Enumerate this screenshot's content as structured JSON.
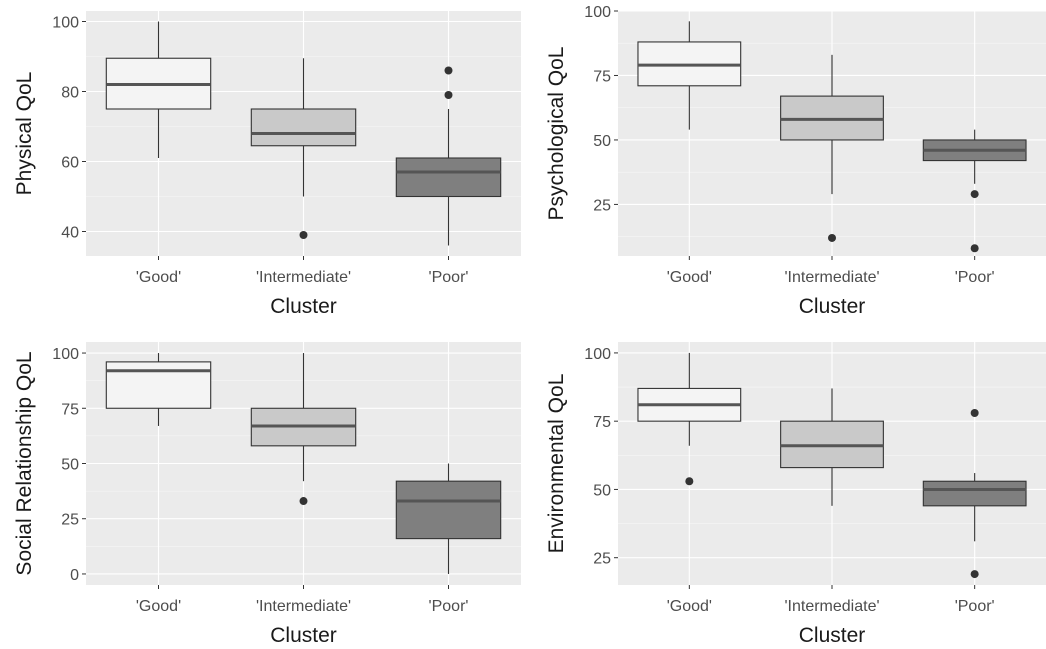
{
  "chart_data": [
    {
      "type": "box",
      "xlabel": "Cluster",
      "ylabel": "Physical QoL",
      "categories": [
        "'Good'",
        "'Intermediate'",
        "'Poor'"
      ],
      "ylim": [
        33,
        103
      ],
      "yticks": [
        40,
        60,
        80,
        100
      ],
      "grid": true,
      "boxes": [
        {
          "category": "'Good'",
          "whisker_low": 61,
          "q1": 75,
          "median": 82,
          "q3": 89.5,
          "whisker_high": 100,
          "outliers": [],
          "fill": "#f4f4f4"
        },
        {
          "category": "'Intermediate'",
          "whisker_low": 50,
          "q1": 64.5,
          "median": 68,
          "q3": 75,
          "whisker_high": 89.5,
          "outliers": [
            39
          ],
          "fill": "#c9c9c9"
        },
        {
          "category": "'Poor'",
          "whisker_low": 36,
          "q1": 50,
          "median": 57,
          "q3": 61,
          "whisker_high": 75,
          "outliers": [
            79,
            86
          ],
          "fill": "#7f7f7f"
        }
      ]
    },
    {
      "type": "box",
      "xlabel": "Cluster",
      "ylabel": "Psychological QoL",
      "categories": [
        "'Good'",
        "'Intermediate'",
        "'Poor'"
      ],
      "ylim": [
        5,
        100
      ],
      "yticks": [
        25,
        50,
        75,
        100
      ],
      "grid": true,
      "boxes": [
        {
          "category": "'Good'",
          "whisker_low": 54,
          "q1": 71,
          "median": 79,
          "q3": 88,
          "whisker_high": 96,
          "outliers": [],
          "fill": "#f4f4f4"
        },
        {
          "category": "'Intermediate'",
          "whisker_low": 29,
          "q1": 50,
          "median": 58,
          "q3": 67,
          "whisker_high": 83,
          "outliers": [
            12
          ],
          "fill": "#c9c9c9"
        },
        {
          "category": "'Poor'",
          "whisker_low": 33,
          "q1": 42,
          "median": 46,
          "q3": 50,
          "whisker_high": 54,
          "outliers": [
            8,
            29
          ],
          "fill": "#7f7f7f"
        }
      ]
    },
    {
      "type": "box",
      "xlabel": "Cluster",
      "ylabel": "Social Relationship QoL",
      "categories": [
        "'Good'",
        "'Intermediate'",
        "'Poor'"
      ],
      "ylim": [
        -5,
        105
      ],
      "yticks": [
        0,
        25,
        50,
        75,
        100
      ],
      "grid": true,
      "boxes": [
        {
          "category": "'Good'",
          "whisker_low": 67,
          "q1": 75,
          "median": 92,
          "q3": 96,
          "whisker_high": 100,
          "outliers": [],
          "fill": "#f4f4f4"
        },
        {
          "category": "'Intermediate'",
          "whisker_low": 42,
          "q1": 58,
          "median": 67,
          "q3": 75,
          "whisker_high": 100,
          "outliers": [
            33
          ],
          "fill": "#c9c9c9"
        },
        {
          "category": "'Poor'",
          "whisker_low": 0,
          "q1": 16,
          "median": 33,
          "q3": 42,
          "whisker_high": 50,
          "outliers": [],
          "fill": "#7f7f7f"
        }
      ]
    },
    {
      "type": "box",
      "xlabel": "Cluster",
      "ylabel": "Environmental QoL",
      "categories": [
        "'Good'",
        "'Intermediate'",
        "'Poor'"
      ],
      "ylim": [
        15,
        104
      ],
      "yticks": [
        25,
        50,
        75,
        100
      ],
      "grid": true,
      "boxes": [
        {
          "category": "'Good'",
          "whisker_low": 66,
          "q1": 75,
          "median": 81,
          "q3": 87,
          "whisker_high": 100,
          "outliers": [
            53
          ],
          "fill": "#f4f4f4"
        },
        {
          "category": "'Intermediate'",
          "whisker_low": 44,
          "q1": 58,
          "median": 66,
          "q3": 75,
          "whisker_high": 87,
          "outliers": [],
          "fill": "#c9c9c9"
        },
        {
          "category": "'Poor'",
          "whisker_low": 31,
          "q1": 44,
          "median": 50,
          "q3": 53,
          "whisker_high": 56,
          "outliers": [
            19,
            78
          ],
          "fill": "#7f7f7f"
        }
      ]
    }
  ]
}
